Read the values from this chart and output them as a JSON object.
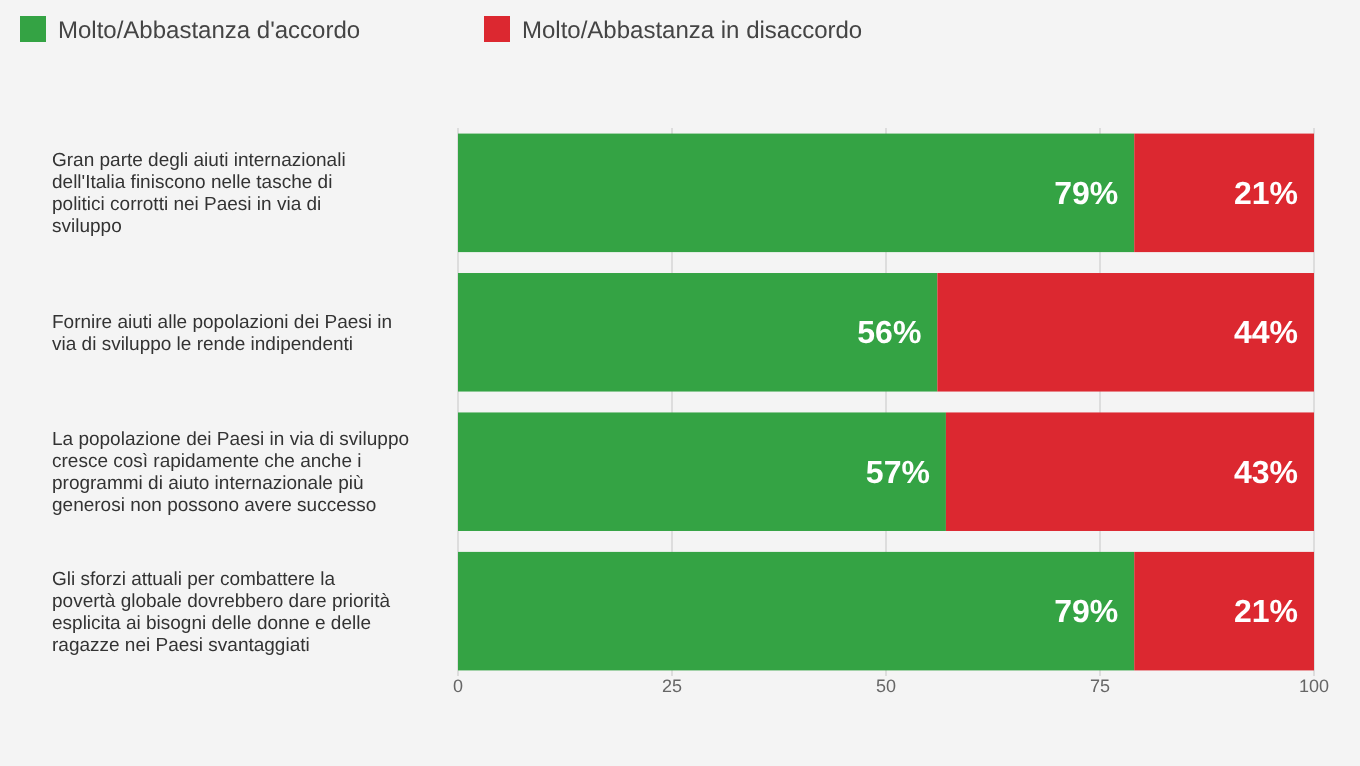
{
  "chart_data": {
    "type": "bar",
    "orientation": "horizontal",
    "stacked": true,
    "categories": [
      "Gran parte degli aiuti internazionali dell'Italia finiscono nelle tasche di politici corrotti nei Paesi in via di sviluppo",
      "Fornire aiuti alle popolazioni dei Paesi in via di sviluppo le rende indipendenti",
      "La popolazione dei Paesi in via di sviluppo cresce così rapidamente che anche i programmi di aiuto internazionale più generosi non possono avere successo",
      "Gli sforzi attuali per combattere la povertà globale dovrebbero dare priorità esplicita ai bisogni delle donne e delle ragazze nei Paesi svantaggiati"
    ],
    "series": [
      {
        "name": "Molto/Abbastanza d'accordo",
        "color": "#34a344",
        "values": [
          79,
          56,
          57,
          79
        ],
        "value_labels": [
          "79%",
          "56%",
          "57%",
          "79%"
        ]
      },
      {
        "name": "Molto/Abbastanza in disaccordo",
        "color": "#dc2830",
        "values": [
          21,
          44,
          43,
          21
        ],
        "value_labels": [
          "21%",
          "44%",
          "43%",
          "21%"
        ]
      }
    ],
    "xlim": [
      0,
      100
    ],
    "xticks": [
      0,
      25,
      50,
      75,
      100
    ],
    "legend": "top left",
    "grid": "x"
  }
}
